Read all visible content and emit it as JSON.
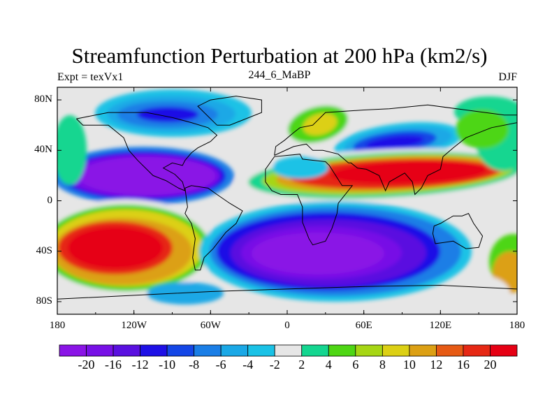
{
  "title": "Streamfunction Perturbation at 200 hPa (km2/s)",
  "left_label": "Expt = texVx1",
  "center_label": "244_6_MaBP",
  "right_label": "DJF",
  "map": {
    "lon_range": [
      -180,
      180
    ],
    "lat_range": [
      -90,
      90
    ],
    "x_ticks": [
      "180",
      "120W",
      "60W",
      "0",
      "60E",
      "120E",
      "180"
    ],
    "y_ticks": [
      "80N",
      "40N",
      "0",
      "40S",
      "80S"
    ]
  },
  "colorbar": {
    "labels": [
      "-20",
      "-16",
      "-12",
      "-10",
      "-8",
      "-6",
      "-4",
      "-2",
      "2",
      "4",
      "6",
      "8",
      "10",
      "12",
      "16",
      "20"
    ],
    "colors": [
      "#8a14e6",
      "#7710e6",
      "#5a10e0",
      "#1e10e6",
      "#1446e6",
      "#1a7ee6",
      "#1aa8e6",
      "#1ac2e6",
      "#e6e6e6",
      "#14d690",
      "#4ed614",
      "#a6d614",
      "#dcd014",
      "#dca014",
      "#e65a14",
      "#e62814",
      "#e60014"
    ]
  },
  "chart_data": {
    "type": "heatmap",
    "title": "Streamfunction Perturbation at 200 hPa (km2/s)",
    "xlabel": "",
    "ylabel": "",
    "x_ticks": [
      "180",
      "120W",
      "60W",
      "0",
      "60E",
      "120E",
      "180"
    ],
    "y_ticks": [
      "80N",
      "40N",
      "0",
      "40S",
      "80S"
    ],
    "levels": [
      -20,
      -16,
      -12,
      -10,
      -8,
      -6,
      -4,
      -2,
      2,
      4,
      6,
      8,
      10,
      12,
      16,
      20
    ],
    "features": [
      {
        "lon": -120,
        "lat": 22,
        "value": -20
      },
      {
        "lon": -90,
        "lat": 68,
        "value": -10
      },
      {
        "lon": 110,
        "lat": 45,
        "value": -12
      },
      {
        "lon": 90,
        "lat": 22,
        "value": 20
      },
      {
        "lon": -135,
        "lat": -35,
        "value": 20
      },
      {
        "lon": 20,
        "lat": -45,
        "value": -20
      },
      {
        "lon": 175,
        "lat": -60,
        "value": 16
      },
      {
        "lon": 30,
        "lat": 55,
        "value": 10
      }
    ]
  }
}
